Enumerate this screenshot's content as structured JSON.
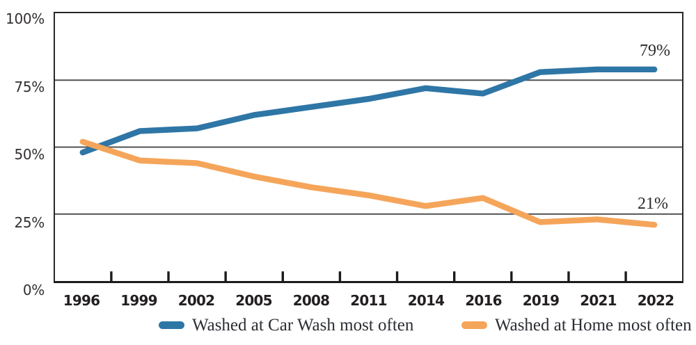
{
  "chart_data": {
    "type": "line",
    "categories": [
      "1996",
      "1999",
      "2002",
      "2005",
      "2008",
      "2011",
      "2014",
      "2016",
      "2019",
      "2021",
      "2022"
    ],
    "series": [
      {
        "name": "Washed at Car Wash most often",
        "color": "#2E76A6",
        "values": [
          48,
          56,
          57,
          62,
          65,
          68,
          72,
          70,
          78,
          79,
          79
        ],
        "end_label": "79%"
      },
      {
        "name": "Washed at Home most often",
        "color": "#F5A55A",
        "values": [
          52,
          45,
          44,
          39,
          35,
          32,
          28,
          31,
          22,
          23,
          21
        ],
        "end_label": "21%"
      }
    ],
    "y_tick_labels": [
      "100%",
      "75%",
      "50%",
      "25%",
      "0%"
    ],
    "ylim": [
      0,
      100
    ],
    "grid_values": [
      75,
      50,
      25
    ],
    "grid": "horizontal",
    "legend_position": "bottom",
    "title": "",
    "xlabel": "",
    "ylabel": ""
  },
  "colors": {
    "gridline": "#4f5154",
    "axis_border": "#2a2526",
    "tick": "#1d1a1b"
  }
}
